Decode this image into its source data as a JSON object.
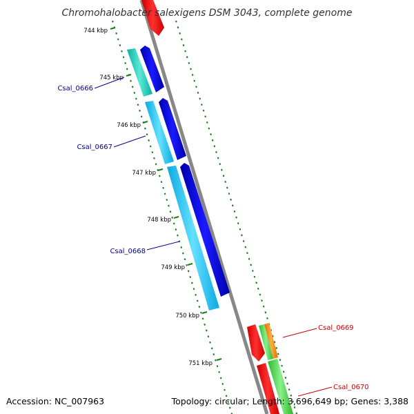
{
  "title": "Chromohalobacter salexigens DSM 3043, complete genome",
  "footer": {
    "accession": "Accession: NC_007963",
    "summary": "Topology: circular; Length: 3,696,649 bp; Genes: 3,388"
  },
  "ruler_ticks": [
    "744 kbp",
    "745 kbp",
    "746 kbp",
    "747 kbp",
    "748 kbp",
    "749 kbp",
    "750 kbp",
    "751 kbp"
  ],
  "gene_labels": [
    {
      "name": "Csal_0666",
      "color": "#00008b"
    },
    {
      "name": "Csal_0667",
      "color": "#00008b"
    },
    {
      "name": "Csal_0668",
      "color": "#00008b"
    },
    {
      "name": "Csal_0669",
      "color": "#cc0000"
    },
    {
      "name": "Csal_0670",
      "color": "#cc0000"
    }
  ],
  "colors": {
    "backbone": "#888888",
    "forward_cds": "#0000dd",
    "gene_cyan": "#18c8f0",
    "gene_teal": "#10c8b8",
    "reverse_cds": "#ee0000",
    "gene_green": "#44cc44",
    "gene_orange": "#ff8800",
    "ruler": "#1a7a1a"
  }
}
